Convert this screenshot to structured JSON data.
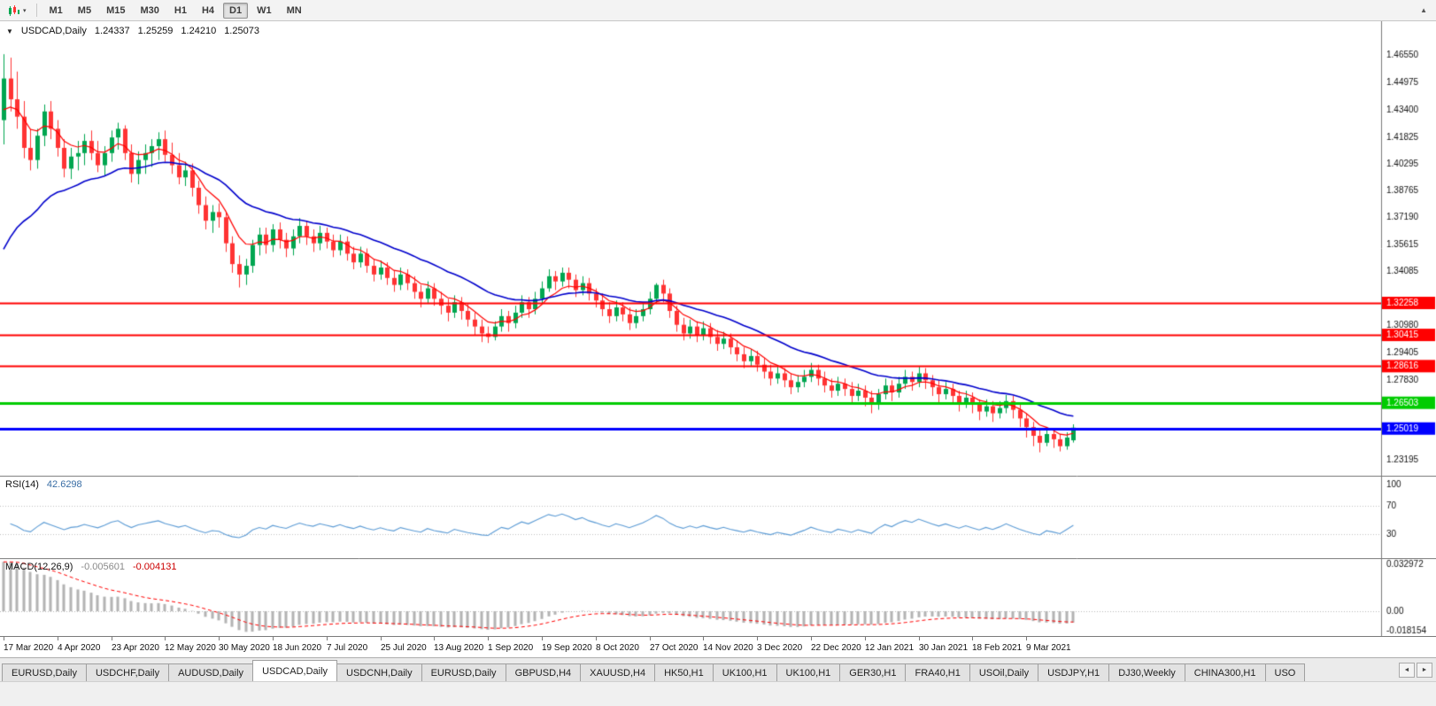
{
  "icons": {
    "collapse": "▼",
    "dropdown": "▾",
    "overflow": "▲",
    "tab_prev": "◄",
    "tab_next": "►"
  },
  "toolbar": {
    "timeframes": [
      "M1",
      "M5",
      "M15",
      "M30",
      "H1",
      "H4",
      "D1",
      "W1",
      "MN"
    ],
    "active": "D1"
  },
  "chart": {
    "symbol": "USDCAD,Daily",
    "open": "1.24337",
    "high": "1.25259",
    "low": "1.24210",
    "close": "1.25073"
  },
  "indicators": {
    "rsi": {
      "name": "RSI(14)",
      "value": "42.6298"
    },
    "macd": {
      "name": "MACD(12,26,9)",
      "value_main": "-0.005601",
      "value_signal": "-0.004131"
    }
  },
  "tabs": {
    "items": [
      "EURUSD,Daily",
      "USDCHF,Daily",
      "AUDUSD,Daily",
      "USDCAD,Daily",
      "USDCNH,Daily",
      "EURUSD,Daily",
      "GBPUSD,H4",
      "XAUUSD,H4",
      "HK50,H1",
      "UK100,H1",
      "UK100,H1",
      "GER30,H1",
      "FRA40,H1",
      "USOil,Daily",
      "USDJPY,H1",
      "DJ30,Weekly",
      "CHINA300,H1",
      "USO"
    ],
    "active_index": 3
  },
  "chart_data": {
    "type": "candlestick",
    "title": "USDCAD,Daily",
    "x_labels": [
      "17 Mar 2020",
      "4 Apr 2020",
      "23 Apr 2020",
      "12 May 2020",
      "30 May 2020",
      "18 Jun 2020",
      "7 Jul 2020",
      "25 Jul 2020",
      "13 Aug 2020",
      "1 Sep 2020",
      "19 Sep 2020",
      "8 Oct 2020",
      "27 Oct 2020",
      "14 Nov 2020",
      "3 Dec 2020",
      "22 Dec 2020",
      "12 Jan 2021",
      "30 Jan 2021",
      "18 Feb 2021",
      "9 Mar 2021"
    ],
    "y_ticks": [
      "1.46550",
      "1.44975",
      "1.43400",
      "1.41825",
      "1.40295",
      "1.38765",
      "1.37190",
      "1.35615",
      "1.34085",
      "1.30980",
      "1.29405",
      "1.27830",
      "1.23195"
    ],
    "price_range": {
      "min": 1.223,
      "max": 1.485
    },
    "colors": {
      "up": "#00a650",
      "down": "#ff3333"
    },
    "ma": [
      {
        "period": 7,
        "seed": 1.428,
        "color": "#ff0000",
        "width": 1.2
      },
      {
        "period": 24,
        "seed": 1.345,
        "color": "#0000cc",
        "width": 1.6
      }
    ],
    "hlines": [
      {
        "price": 1.32258,
        "label": "1.32258",
        "color": "#ff0000",
        "width": 2
      },
      {
        "price": 1.30415,
        "label": "1.30415",
        "color": "#ff0000",
        "width": 2
      },
      {
        "price": 1.28616,
        "label": "1.28616",
        "color": "#ff0000",
        "width": 2
      },
      {
        "price": 1.26503,
        "label": "1.26503",
        "color": "#00cc00",
        "width": 3
      },
      {
        "price": 1.25019,
        "label": "1.25019",
        "color": "#0000ff",
        "width": 3
      }
    ],
    "rsi": {
      "period": 14,
      "levels": [
        70,
        30
      ],
      "scale_labels": [
        "100",
        "70",
        "30"
      ],
      "color": "#5b9bd5"
    },
    "macd": {
      "fast": 12,
      "slow": 26,
      "signal": 9,
      "seed_fast": 1.4,
      "seed_slow": 1.367,
      "scale_labels": [
        "0.032972",
        "0.00",
        "-0.018154"
      ],
      "hist_color": "#b4b4b4",
      "signal_color": "#ff0000"
    },
    "candles": [
      [
        1.428,
        1.466,
        1.414,
        1.452
      ],
      [
        1.452,
        1.464,
        1.433,
        1.44
      ],
      [
        1.44,
        1.456,
        1.423,
        1.43
      ],
      [
        1.43,
        1.439,
        1.406,
        1.412
      ],
      [
        1.412,
        1.423,
        1.399,
        1.405
      ],
      [
        1.405,
        1.423,
        1.4,
        1.419
      ],
      [
        1.419,
        1.437,
        1.413,
        1.433
      ],
      [
        1.433,
        1.439,
        1.417,
        1.423
      ],
      [
        1.423,
        1.428,
        1.407,
        1.412
      ],
      [
        1.412,
        1.417,
        1.395,
        1.4
      ],
      [
        1.4,
        1.412,
        1.394,
        1.407
      ],
      [
        1.407,
        1.416,
        1.399,
        1.409
      ],
      [
        1.409,
        1.42,
        1.402,
        1.416
      ],
      [
        1.416,
        1.422,
        1.405,
        1.409
      ],
      [
        1.409,
        1.416,
        1.398,
        1.402
      ],
      [
        1.402,
        1.413,
        1.396,
        1.409
      ],
      [
        1.409,
        1.422,
        1.404,
        1.418
      ],
      [
        1.418,
        1.4265,
        1.411,
        1.423
      ],
      [
        1.423,
        1.425,
        1.405,
        1.409
      ],
      [
        1.409,
        1.414,
        1.392,
        1.397
      ],
      [
        1.397,
        1.41,
        1.391,
        1.405
      ],
      [
        1.405,
        1.414,
        1.397,
        1.409
      ],
      [
        1.409,
        1.417,
        1.401,
        1.413
      ],
      [
        1.413,
        1.421,
        1.405,
        1.417
      ],
      [
        1.417,
        1.422,
        1.404,
        1.408
      ],
      [
        1.408,
        1.415,
        1.397,
        1.402
      ],
      [
        1.402,
        1.409,
        1.391,
        1.395
      ],
      [
        1.395,
        1.404,
        1.39,
        1.399
      ],
      [
        1.399,
        1.403,
        1.384,
        1.389
      ],
      [
        1.389,
        1.393,
        1.374,
        1.379
      ],
      [
        1.379,
        1.384,
        1.365,
        1.37
      ],
      [
        1.37,
        1.379,
        1.363,
        1.375
      ],
      [
        1.375,
        1.38,
        1.366,
        1.372
      ],
      [
        1.372,
        1.375,
        1.352,
        1.357
      ],
      [
        1.357,
        1.361,
        1.34,
        1.345
      ],
      [
        1.345,
        1.35,
        1.3315,
        1.339
      ],
      [
        1.339,
        1.348,
        1.333,
        1.344
      ],
      [
        1.344,
        1.359,
        1.34,
        1.356
      ],
      [
        1.356,
        1.366,
        1.35,
        1.362
      ],
      [
        1.362,
        1.366,
        1.351,
        1.356
      ],
      [
        1.356,
        1.368,
        1.352,
        1.365
      ],
      [
        1.365,
        1.369,
        1.354,
        1.359
      ],
      [
        1.359,
        1.363,
        1.349,
        1.354
      ],
      [
        1.354,
        1.365,
        1.35,
        1.361
      ],
      [
        1.361,
        1.3715,
        1.357,
        1.367
      ],
      [
        1.367,
        1.37,
        1.356,
        1.361
      ],
      [
        1.361,
        1.365,
        1.352,
        1.357
      ],
      [
        1.357,
        1.367,
        1.353,
        1.363
      ],
      [
        1.363,
        1.366,
        1.354,
        1.358
      ],
      [
        1.358,
        1.362,
        1.349,
        1.353
      ],
      [
        1.353,
        1.362,
        1.35,
        1.358
      ],
      [
        1.358,
        1.361,
        1.347,
        1.351
      ],
      [
        1.351,
        1.355,
        1.342,
        1.346
      ],
      [
        1.346,
        1.355,
        1.343,
        1.351
      ],
      [
        1.351,
        1.354,
        1.34,
        1.344
      ],
      [
        1.344,
        1.348,
        1.335,
        1.339
      ],
      [
        1.339,
        1.347,
        1.336,
        1.343
      ],
      [
        1.343,
        1.346,
        1.333,
        1.337
      ],
      [
        1.337,
        1.341,
        1.329,
        1.333
      ],
      [
        1.333,
        1.343,
        1.33,
        1.339
      ],
      [
        1.339,
        1.342,
        1.33,
        1.334
      ],
      [
        1.334,
        1.338,
        1.325,
        1.329
      ],
      [
        1.329,
        1.333,
        1.32,
        1.325
      ],
      [
        1.325,
        1.335,
        1.322,
        1.331
      ],
      [
        1.331,
        1.334,
        1.321,
        1.325
      ],
      [
        1.325,
        1.329,
        1.316,
        1.321
      ],
      [
        1.321,
        1.325,
        1.312,
        1.317
      ],
      [
        1.317,
        1.327,
        1.314,
        1.323
      ],
      [
        1.323,
        1.326,
        1.313,
        1.318
      ],
      [
        1.318,
        1.322,
        1.309,
        1.313
      ],
      [
        1.313,
        1.317,
        1.304,
        1.309
      ],
      [
        1.309,
        1.313,
        1.3,
        1.305
      ],
      [
        1.305,
        1.309,
        1.2995,
        1.303
      ],
      [
        1.303,
        1.312,
        1.301,
        1.309
      ],
      [
        1.309,
        1.319,
        1.306,
        1.315
      ],
      [
        1.315,
        1.318,
        1.306,
        1.311
      ],
      [
        1.311,
        1.321,
        1.308,
        1.317
      ],
      [
        1.317,
        1.327,
        1.314,
        1.323
      ],
      [
        1.323,
        1.326,
        1.314,
        1.319
      ],
      [
        1.319,
        1.329,
        1.316,
        1.325
      ],
      [
        1.325,
        1.335,
        1.322,
        1.331
      ],
      [
        1.331,
        1.342,
        1.329,
        1.338
      ],
      [
        1.338,
        1.341,
        1.33,
        1.335
      ],
      [
        1.335,
        1.343,
        1.332,
        1.34
      ],
      [
        1.34,
        1.343,
        1.331,
        1.336
      ],
      [
        1.336,
        1.339,
        1.326,
        1.33
      ],
      [
        1.33,
        1.338,
        1.327,
        1.334
      ],
      [
        1.334,
        1.337,
        1.324,
        1.328
      ],
      [
        1.328,
        1.331,
        1.32,
        1.324
      ],
      [
        1.324,
        1.328,
        1.315,
        1.319
      ],
      [
        1.319,
        1.323,
        1.311,
        1.315
      ],
      [
        1.315,
        1.324,
        1.312,
        1.32
      ],
      [
        1.32,
        1.323,
        1.312,
        1.316
      ],
      [
        1.316,
        1.32,
        1.307,
        1.311
      ],
      [
        1.311,
        1.319,
        1.308,
        1.315
      ],
      [
        1.315,
        1.323,
        1.312,
        1.319
      ],
      [
        1.319,
        1.329,
        1.316,
        1.325
      ],
      [
        1.325,
        1.334,
        1.322,
        1.333
      ],
      [
        1.333,
        1.336,
        1.323,
        1.328
      ],
      [
        1.328,
        1.331,
        1.314,
        1.318
      ],
      [
        1.318,
        1.321,
        1.306,
        1.31
      ],
      [
        1.31,
        1.314,
        1.301,
        1.305
      ],
      [
        1.305,
        1.313,
        1.302,
        1.309
      ],
      [
        1.309,
        1.312,
        1.3,
        1.304
      ],
      [
        1.304,
        1.312,
        1.301,
        1.308
      ],
      [
        1.308,
        1.311,
        1.299,
        1.303
      ],
      [
        1.303,
        1.307,
        1.295,
        1.299
      ],
      [
        1.299,
        1.306,
        1.296,
        1.302
      ],
      [
        1.302,
        1.305,
        1.293,
        1.297
      ],
      [
        1.297,
        1.301,
        1.289,
        1.293
      ],
      [
        1.293,
        1.297,
        1.285,
        1.289
      ],
      [
        1.289,
        1.296,
        1.286,
        1.292
      ],
      [
        1.292,
        1.295,
        1.283,
        1.287
      ],
      [
        1.287,
        1.291,
        1.279,
        1.283
      ],
      [
        1.283,
        1.287,
        1.275,
        1.279
      ],
      [
        1.279,
        1.286,
        1.276,
        1.282
      ],
      [
        1.282,
        1.285,
        1.274,
        1.278
      ],
      [
        1.278,
        1.282,
        1.27,
        1.274
      ],
      [
        1.274,
        1.281,
        1.271,
        1.277
      ],
      [
        1.277,
        1.284,
        1.274,
        1.28
      ],
      [
        1.28,
        1.288,
        1.277,
        1.284
      ],
      [
        1.284,
        1.287,
        1.275,
        1.279
      ],
      [
        1.279,
        1.283,
        1.271,
        1.275
      ],
      [
        1.275,
        1.279,
        1.268,
        1.272
      ],
      [
        1.272,
        1.28,
        1.269,
        1.276
      ],
      [
        1.276,
        1.279,
        1.269,
        1.273
      ],
      [
        1.273,
        1.277,
        1.265,
        1.269
      ],
      [
        1.269,
        1.276,
        1.266,
        1.272
      ],
      [
        1.272,
        1.275,
        1.263,
        1.268
      ],
      [
        1.268,
        1.272,
        1.259,
        1.264
      ],
      [
        1.264,
        1.273,
        1.261,
        1.27
      ],
      [
        1.27,
        1.279,
        1.267,
        1.275
      ],
      [
        1.275,
        1.278,
        1.266,
        1.271
      ],
      [
        1.271,
        1.28,
        1.268,
        1.276
      ],
      [
        1.276,
        1.284,
        1.273,
        1.28
      ],
      [
        1.28,
        1.283,
        1.272,
        1.277
      ],
      [
        1.277,
        1.286,
        1.274,
        1.282
      ],
      [
        1.282,
        1.285,
        1.273,
        1.278
      ],
      [
        1.278,
        1.281,
        1.269,
        1.274
      ],
      [
        1.274,
        1.278,
        1.265,
        1.27
      ],
      [
        1.27,
        1.277,
        1.267,
        1.273
      ],
      [
        1.273,
        1.276,
        1.264,
        1.269
      ],
      [
        1.269,
        1.272,
        1.26,
        1.265
      ],
      [
        1.265,
        1.272,
        1.262,
        1.268
      ],
      [
        1.268,
        1.271,
        1.259,
        1.264
      ],
      [
        1.264,
        1.267,
        1.255,
        1.26
      ],
      [
        1.26,
        1.267,
        1.257,
        1.263
      ],
      [
        1.263,
        1.266,
        1.254,
        1.259
      ],
      [
        1.259,
        1.266,
        1.256,
        1.262
      ],
      [
        1.262,
        1.2695,
        1.259,
        1.266
      ],
      [
        1.266,
        1.269,
        1.256,
        1.261
      ],
      [
        1.261,
        1.264,
        1.251,
        1.256
      ],
      [
        1.256,
        1.259,
        1.245,
        1.251
      ],
      [
        1.251,
        1.254,
        1.24,
        1.246
      ],
      [
        1.246,
        1.25,
        1.2365,
        1.242
      ],
      [
        1.242,
        1.251,
        1.24,
        1.247
      ],
      [
        1.247,
        1.25,
        1.239,
        1.244
      ],
      [
        1.244,
        1.247,
        1.237,
        1.24
      ],
      [
        1.24,
        1.248,
        1.238,
        1.245
      ],
      [
        1.2434,
        1.2526,
        1.2421,
        1.2507
      ]
    ]
  }
}
